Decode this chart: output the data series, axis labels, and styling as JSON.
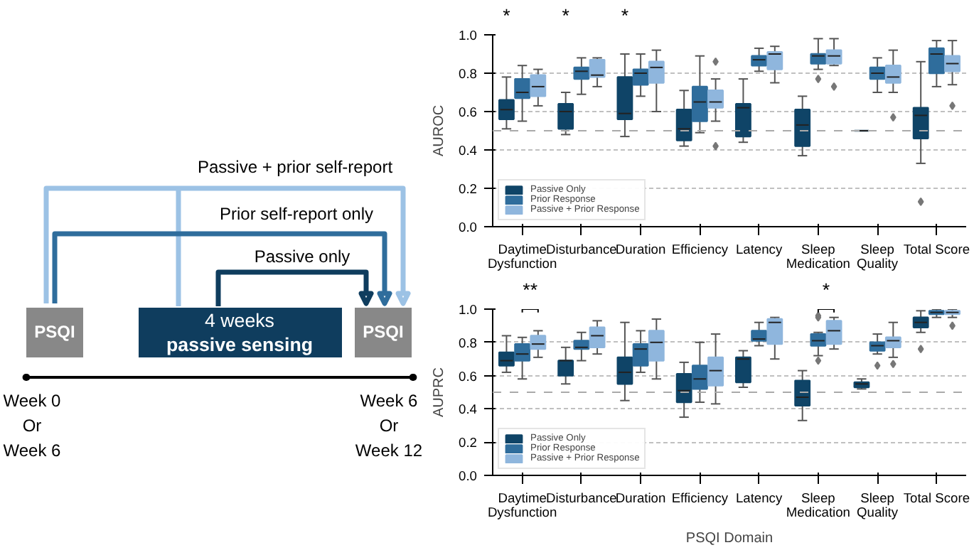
{
  "chart_data": [
    {
      "type": "other",
      "annotations": [
        "Passive + prior self-report",
        "Prior self-report only",
        "Passive only",
        "PSQI",
        "4 weeks",
        "passive sensing",
        "PSQI",
        "Week 0\nOr\nWeek 6",
        "Week 6\nOr\nWeek 12"
      ]
    },
    {
      "type": "box",
      "ylabel": "AUROC",
      "categories": [
        "Daytime\nDysfunction",
        "Disturbance",
        "Duration",
        "Efficiency",
        "Latency",
        "Sleep\nMedication",
        "Sleep\nQuality",
        "Total Score"
      ],
      "ylim": [
        0,
        1
      ],
      "yticks": [
        {
          "value": 0,
          "label": "0.0"
        },
        {
          "value": 0.2,
          "label": "0.2"
        },
        {
          "value": 0.4,
          "label": "0.4"
        },
        {
          "value": 0.6,
          "label": "0.6"
        },
        {
          "value": 0.8,
          "label": "0.8"
        },
        {
          "value": 1,
          "label": "1.0"
        }
      ],
      "grid": "y",
      "legend": "bottom left",
      "ref_lines": [
        {
          "axis": "y",
          "value": 0.5,
          "color": "#aaaaaa",
          "line_style": "dashed"
        }
      ],
      "annotations": [
        "*",
        "*",
        "*"
      ],
      "series": [
        {
          "name": "Passive Only",
          "color": "#0f4467",
          "boxes": [
            {
              "low": 0.51,
              "q1": 0.56,
              "median": 0.61,
              "q3": 0.66,
              "high": 0.78
            },
            {
              "low": 0.48,
              "q1": 0.51,
              "median": 0.6,
              "q3": 0.64,
              "high": 0.7
            },
            {
              "low": 0.47,
              "q1": 0.56,
              "median": 0.59,
              "q3": 0.78,
              "high": 0.9
            },
            {
              "low": 0.42,
              "q1": 0.45,
              "median": 0.51,
              "q3": 0.61,
              "high": 0.71
            },
            {
              "low": 0.44,
              "q1": 0.47,
              "median": 0.62,
              "q3": 0.64,
              "high": 0.77
            },
            {
              "low": 0.37,
              "q1": 0.42,
              "median": 0.53,
              "q3": 0.61,
              "high": 0.68
            },
            {
              "low": 0.5,
              "q1": 0.5,
              "median": 0.5,
              "q3": 0.5,
              "high": 0.5
            },
            {
              "low": 0.33,
              "q1": 0.46,
              "median": 0.58,
              "q3": 0.62,
              "high": 0.86,
              "outliers": [
                0.13
              ]
            }
          ]
        },
        {
          "name": "Prior Response",
          "color": "#2f6d9c",
          "boxes": [
            {
              "low": 0.55,
              "q1": 0.67,
              "median": 0.7,
              "q3": 0.77,
              "high": 0.84
            },
            {
              "low": 0.69,
              "q1": 0.77,
              "median": 0.81,
              "q3": 0.83,
              "high": 0.88
            },
            {
              "low": 0.68,
              "q1": 0.74,
              "median": 0.8,
              "q3": 0.82,
              "high": 0.9
            },
            {
              "low": 0.49,
              "q1": 0.55,
              "median": 0.65,
              "q3": 0.73,
              "high": 0.89
            },
            {
              "low": 0.81,
              "q1": 0.84,
              "median": 0.87,
              "q3": 0.89,
              "high": 0.93
            },
            {
              "low": 0.82,
              "q1": 0.85,
              "median": 0.89,
              "q3": 0.9,
              "high": 0.98,
              "outliers": [
                0.77
              ]
            },
            {
              "low": 0.7,
              "q1": 0.77,
              "median": 0.8,
              "q3": 0.83,
              "high": 0.88
            },
            {
              "low": 0.73,
              "q1": 0.8,
              "median": 0.9,
              "q3": 0.93,
              "high": 0.97
            }
          ]
        },
        {
          "name": "Passive + Prior Response",
          "color": "#8fb6dd",
          "boxes": [
            {
              "low": 0.63,
              "q1": 0.68,
              "median": 0.73,
              "q3": 0.79,
              "high": 0.82
            },
            {
              "low": 0.73,
              "q1": 0.78,
              "median": 0.79,
              "q3": 0.87,
              "high": 0.88
            },
            {
              "low": 0.6,
              "q1": 0.75,
              "median": 0.83,
              "q3": 0.86,
              "high": 0.92
            },
            {
              "low": 0.55,
              "q1": 0.62,
              "median": 0.65,
              "q3": 0.71,
              "high": 0.77,
              "outliers": [
                0.86,
                0.42
              ]
            },
            {
              "low": 0.75,
              "q1": 0.82,
              "median": 0.9,
              "q3": 0.91,
              "high": 0.94
            },
            {
              "low": 0.84,
              "q1": 0.85,
              "median": 0.89,
              "q3": 0.92,
              "high": 0.98,
              "outliers": [
                0.73
              ]
            },
            {
              "low": 0.7,
              "q1": 0.75,
              "median": 0.78,
              "q3": 0.84,
              "high": 0.92,
              "outliers": [
                0.57
              ]
            },
            {
              "low": 0.74,
              "q1": 0.81,
              "median": 0.85,
              "q3": 0.89,
              "high": 0.97,
              "outliers": [
                0.63
              ]
            }
          ]
        }
      ]
    },
    {
      "type": "box",
      "ylabel": "AUPRC",
      "xlabel": "PSQI Domain",
      "categories": [
        "Daytime\nDysfunction",
        "Disturbance",
        "Duration",
        "Efficiency",
        "Latency",
        "Sleep\nMedication",
        "Sleep\nQuality",
        "Total Score"
      ],
      "ylim": [
        0,
        1
      ],
      "yticks": [
        {
          "value": 0,
          "label": "0.0"
        },
        {
          "value": 0.2,
          "label": "0.2"
        },
        {
          "value": 0.4,
          "label": "0.4"
        },
        {
          "value": 0.6,
          "label": "0.6"
        },
        {
          "value": 0.8,
          "label": "0.8"
        },
        {
          "value": 1,
          "label": "1.0"
        }
      ],
      "grid": "y",
      "legend": "bottom left",
      "ref_lines": [
        {
          "axis": "y",
          "value": 0.5,
          "color": "#aaaaaa",
          "line_style": "dashed"
        }
      ],
      "annotations": [
        "**",
        "*"
      ],
      "series": [
        {
          "name": "Passive Only",
          "color": "#0f4467",
          "boxes": [
            {
              "low": 0.62,
              "q1": 0.66,
              "median": 0.69,
              "q3": 0.74,
              "high": 0.84
            },
            {
              "low": 0.55,
              "q1": 0.6,
              "median": 0.69,
              "q3": 0.69,
              "high": 0.77
            },
            {
              "low": 0.45,
              "q1": 0.55,
              "median": 0.62,
              "q3": 0.71,
              "high": 0.92
            },
            {
              "low": 0.35,
              "q1": 0.44,
              "median": 0.51,
              "q3": 0.61,
              "high": 0.68
            },
            {
              "low": 0.53,
              "q1": 0.56,
              "median": 0.7,
              "q3": 0.71,
              "high": 0.75
            },
            {
              "low": 0.33,
              "q1": 0.42,
              "median": 0.47,
              "q3": 0.57,
              "high": 0.63
            },
            {
              "low": 0.52,
              "q1": 0.53,
              "median": 0.55,
              "q3": 0.56,
              "high": 0.58
            },
            {
              "low": 0.86,
              "q1": 0.89,
              "median": 0.92,
              "q3": 0.95,
              "high": 0.99,
              "outliers": [
                0.76
              ]
            }
          ]
        },
        {
          "name": "Prior Response",
          "color": "#2f6d9c",
          "boxes": [
            {
              "low": 0.58,
              "q1": 0.69,
              "median": 0.73,
              "q3": 0.79,
              "high": 0.83
            },
            {
              "low": 0.69,
              "q1": 0.76,
              "median": 0.77,
              "q3": 0.81,
              "high": 0.86
            },
            {
              "low": 0.62,
              "q1": 0.66,
              "median": 0.76,
              "q3": 0.79,
              "high": 0.87
            },
            {
              "low": 0.44,
              "q1": 0.52,
              "median": 0.58,
              "q3": 0.66,
              "high": 0.8
            },
            {
              "low": 0.78,
              "q1": 0.81,
              "median": 0.82,
              "q3": 0.87,
              "high": 0.92
            },
            {
              "low": 0.72,
              "q1": 0.78,
              "median": 0.81,
              "q3": 0.85,
              "high": 0.86,
              "outliers": [
                0.95,
                0.96,
                0.69
              ]
            },
            {
              "low": 0.73,
              "q1": 0.75,
              "median": 0.78,
              "q3": 0.8,
              "high": 0.85,
              "outliers": [
                0.66
              ]
            },
            {
              "low": 0.95,
              "q1": 0.97,
              "median": 0.98,
              "q3": 0.99,
              "high": 1.0
            }
          ]
        },
        {
          "name": "Passive + Prior Response",
          "color": "#8fb6dd",
          "boxes": [
            {
              "low": 0.71,
              "q1": 0.76,
              "median": 0.79,
              "q3": 0.84,
              "high": 0.87
            },
            {
              "low": 0.73,
              "q1": 0.77,
              "median": 0.84,
              "q3": 0.89,
              "high": 0.93
            },
            {
              "low": 0.58,
              "q1": 0.69,
              "median": 0.8,
              "q3": 0.87,
              "high": 0.94
            },
            {
              "low": 0.43,
              "q1": 0.54,
              "median": 0.63,
              "q3": 0.71,
              "high": 0.85
            },
            {
              "low": 0.7,
              "q1": 0.79,
              "median": 0.92,
              "q3": 0.94,
              "high": 0.95
            },
            {
              "low": 0.76,
              "q1": 0.79,
              "median": 0.87,
              "q3": 0.93,
              "high": 0.95
            },
            {
              "low": 0.71,
              "q1": 0.77,
              "median": 0.81,
              "q3": 0.83,
              "high": 0.92,
              "outliers": [
                0.67
              ]
            },
            {
              "low": 0.95,
              "q1": 0.97,
              "median": 0.98,
              "q3": 0.99,
              "high": 1.0,
              "outliers": [
                0.9
              ]
            }
          ]
        }
      ]
    }
  ]
}
